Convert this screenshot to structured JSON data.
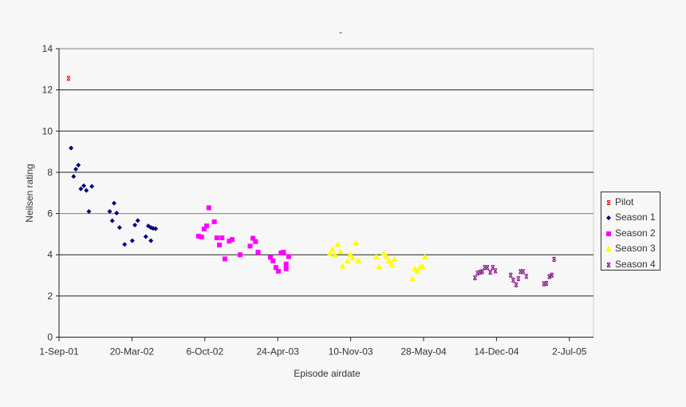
{
  "chart_data": {
    "type": "scatter",
    "title": "-",
    "xlabel": "Episode airdate",
    "ylabel": "Neilsen rating",
    "ylim": [
      0,
      14
    ],
    "yticks": [
      0,
      2,
      4,
      6,
      8,
      10,
      12,
      14
    ],
    "xlim_days_since_2001_09_01": [
      0,
      1475
    ],
    "xticks": [
      {
        "label": "1-Sep-01",
        "day": 0
      },
      {
        "label": "20-Mar-02",
        "day": 200
      },
      {
        "label": "6-Oct-02",
        "day": 400
      },
      {
        "label": "24-Apr-03",
        "day": 600
      },
      {
        "label": "10-Nov-03",
        "day": 800
      },
      {
        "label": "28-May-04",
        "day": 1000
      },
      {
        "label": "14-Dec-04",
        "day": 1200
      },
      {
        "label": "2-Jul-05",
        "day": 1400
      }
    ],
    "grid": "horizontal",
    "legend_position": "right",
    "x_unit": "days since 1-Sep-01",
    "series": [
      {
        "name": "Pilot",
        "color": "#ff0000",
        "marker": "star",
        "points": [
          [
            26,
            12.56
          ]
        ]
      },
      {
        "name": "Season 1",
        "color": "#000080",
        "marker": "diamond",
        "points": [
          [
            33,
            9.18
          ],
          [
            40,
            7.8
          ],
          [
            46,
            8.15
          ],
          [
            53,
            8.35
          ],
          [
            60,
            7.2
          ],
          [
            68,
            7.35
          ],
          [
            75,
            7.12
          ],
          [
            90,
            7.32
          ],
          [
            82,
            6.1
          ],
          [
            139,
            6.1
          ],
          [
            151,
            6.5
          ],
          [
            146,
            5.65
          ],
          [
            158,
            6.02
          ],
          [
            166,
            5.32
          ],
          [
            180,
            4.5
          ],
          [
            201,
            4.68
          ],
          [
            208,
            5.44
          ],
          [
            216,
            5.66
          ],
          [
            238,
            4.88
          ],
          [
            245,
            5.4
          ],
          [
            252,
            5.32
          ],
          [
            258,
            5.28
          ],
          [
            265,
            5.26
          ],
          [
            252,
            4.68
          ]
        ]
      },
      {
        "name": "Season 2",
        "color": "#ff00ff",
        "marker": "square",
        "points": [
          [
            383,
            4.9
          ],
          [
            391,
            4.86
          ],
          [
            398,
            5.25
          ],
          [
            405,
            5.4
          ],
          [
            411,
            6.28
          ],
          [
            426,
            5.6
          ],
          [
            433,
            4.82
          ],
          [
            440,
            4.47
          ],
          [
            447,
            4.82
          ],
          [
            455,
            3.8
          ],
          [
            467,
            4.66
          ],
          [
            475,
            4.74
          ],
          [
            497,
            4.0
          ],
          [
            524,
            4.42
          ],
          [
            532,
            4.8
          ],
          [
            539,
            4.64
          ],
          [
            546,
            4.12
          ],
          [
            580,
            3.87
          ],
          [
            587,
            3.7
          ],
          [
            595,
            3.38
          ],
          [
            602,
            3.2
          ],
          [
            609,
            4.09
          ],
          [
            616,
            4.12
          ],
          [
            630,
            3.91
          ],
          [
            623,
            3.55
          ],
          [
            623,
            3.32
          ]
        ]
      },
      {
        "name": "Season 3",
        "color": "#ffff00",
        "marker": "triangle",
        "points": [
          [
            743,
            4.05
          ],
          [
            750,
            4.27
          ],
          [
            757,
            4.0
          ],
          [
            765,
            4.5
          ],
          [
            772,
            4.15
          ],
          [
            778,
            3.44
          ],
          [
            792,
            3.69
          ],
          [
            799,
            4.02
          ],
          [
            806,
            3.85
          ],
          [
            814,
            4.58
          ],
          [
            821,
            3.72
          ],
          [
            870,
            3.89
          ],
          [
            878,
            3.41
          ],
          [
            891,
            4.06
          ],
          [
            898,
            3.92
          ],
          [
            905,
            3.7
          ],
          [
            913,
            3.52
          ],
          [
            920,
            3.78
          ],
          [
            969,
            2.83
          ],
          [
            976,
            3.31
          ],
          [
            983,
            3.21
          ],
          [
            990,
            3.38
          ],
          [
            997,
            3.44
          ],
          [
            1004,
            3.89
          ]
        ]
      },
      {
        "name": "Season 4",
        "color": "#800080",
        "marker": "star",
        "points": [
          [
            1141,
            2.88
          ],
          [
            1148,
            3.11
          ],
          [
            1155,
            3.15
          ],
          [
            1161,
            3.18
          ],
          [
            1168,
            3.38
          ],
          [
            1175,
            3.38
          ],
          [
            1183,
            3.15
          ],
          [
            1190,
            3.38
          ],
          [
            1197,
            3.22
          ],
          [
            1239,
            3.01
          ],
          [
            1246,
            2.77
          ],
          [
            1254,
            2.54
          ],
          [
            1260,
            2.84
          ],
          [
            1266,
            3.18
          ],
          [
            1273,
            3.18
          ],
          [
            1282,
            2.95
          ],
          [
            1330,
            2.59
          ],
          [
            1337,
            2.61
          ],
          [
            1345,
            2.94
          ],
          [
            1352,
            3.01
          ],
          [
            1358,
            3.78
          ]
        ]
      }
    ]
  },
  "legend": {
    "items": [
      {
        "label": "Pilot"
      },
      {
        "label": "Season 1"
      },
      {
        "label": "Season 2"
      },
      {
        "label": "Season 3"
      },
      {
        "label": "Season 4"
      }
    ]
  }
}
